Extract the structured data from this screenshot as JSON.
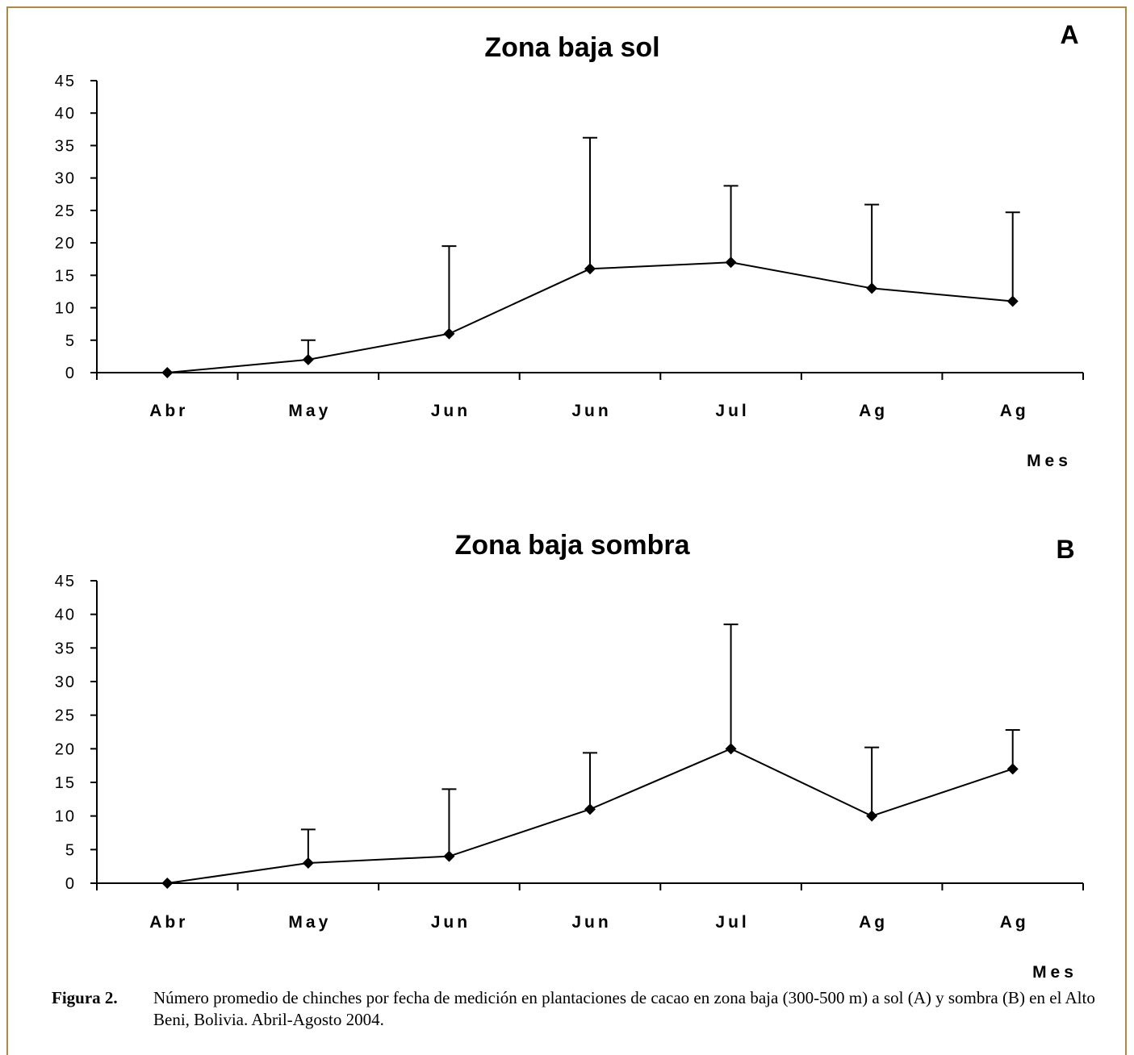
{
  "chart_data": [
    {
      "type": "line",
      "title": "Zona baja sol",
      "panel_label": "A",
      "categories": [
        "Abr",
        "May",
        "Jun",
        "Jun",
        "Jul",
        "Ag",
        "Ag"
      ],
      "series": [
        {
          "values": [
            0,
            2,
            6,
            16,
            17,
            13,
            11
          ],
          "error_upper": [
            0,
            5,
            19.5,
            36.2,
            28.8,
            25.9,
            24.7
          ]
        }
      ],
      "xlabel": "Mes",
      "ylabel": "",
      "ylim": [
        0,
        45
      ],
      "yticks": [
        "0",
        "5",
        "10",
        "15",
        "20",
        "25",
        "30",
        "35",
        "40",
        "45"
      ],
      "grid": false
    },
    {
      "type": "line",
      "title": "Zona baja sombra",
      "panel_label": "B",
      "categories": [
        "Abr",
        "May",
        "Jun",
        "Jun",
        "Jul",
        "Ag",
        "Ag"
      ],
      "series": [
        {
          "values": [
            0,
            3,
            4,
            11,
            20,
            10,
            17
          ],
          "error_upper": [
            0,
            8,
            14,
            19.4,
            38.5,
            20.2,
            22.8
          ]
        }
      ],
      "xlabel": "Mes",
      "ylabel": "",
      "ylim": [
        0,
        45
      ],
      "yticks": [
        "0",
        "5",
        "10",
        "15",
        "20",
        "25",
        "30",
        "35",
        "40",
        "45"
      ],
      "grid": false
    }
  ],
  "caption": {
    "label": "Figura 2.",
    "text": "Número promedio de chinches por fecha de medición en plantaciones de cacao en zona baja (300-500 m) a sol (A) y sombra (B) en el Alto Beni, Bolivia. Abril-Agosto 2004."
  },
  "colors": {
    "frame": "#b8863b",
    "line": "#000000"
  }
}
